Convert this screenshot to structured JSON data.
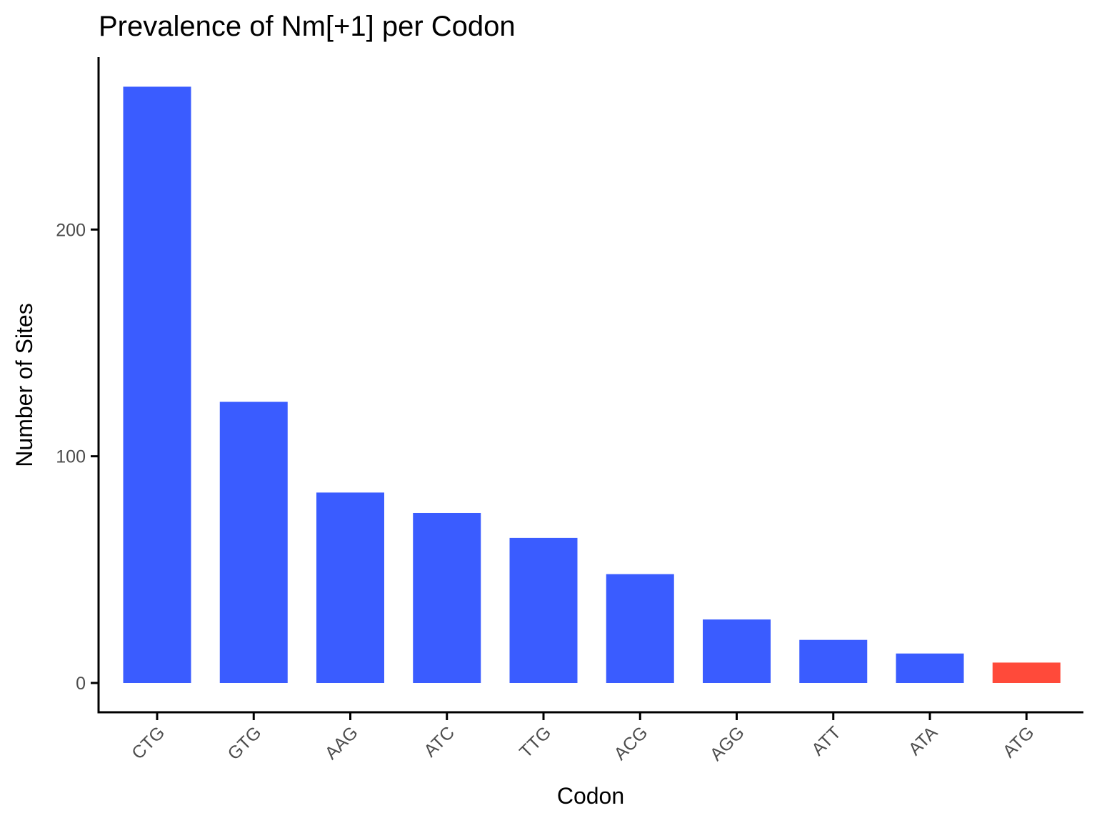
{
  "chart_data": {
    "type": "bar",
    "title": "Prevalence of Nm[+1] per Codon",
    "xlabel": "Codon",
    "ylabel": "Number of Sites",
    "categories": [
      "CTG",
      "GTG",
      "AAG",
      "ATC",
      "TTG",
      "ACG",
      "AGG",
      "ATT",
      "ATA",
      "ATG"
    ],
    "values": [
      263,
      124,
      84,
      75,
      64,
      48,
      28,
      19,
      13,
      9
    ],
    "colors": [
      "#3a5cff",
      "#3a5cff",
      "#3a5cff",
      "#3a5cff",
      "#3a5cff",
      "#3a5cff",
      "#3a5cff",
      "#3a5cff",
      "#3a5cff",
      "#ff4a3a"
    ],
    "yticks": [
      0,
      100,
      200
    ],
    "ylim": [
      -13,
      276
    ],
    "grid": false,
    "legend": "none"
  }
}
